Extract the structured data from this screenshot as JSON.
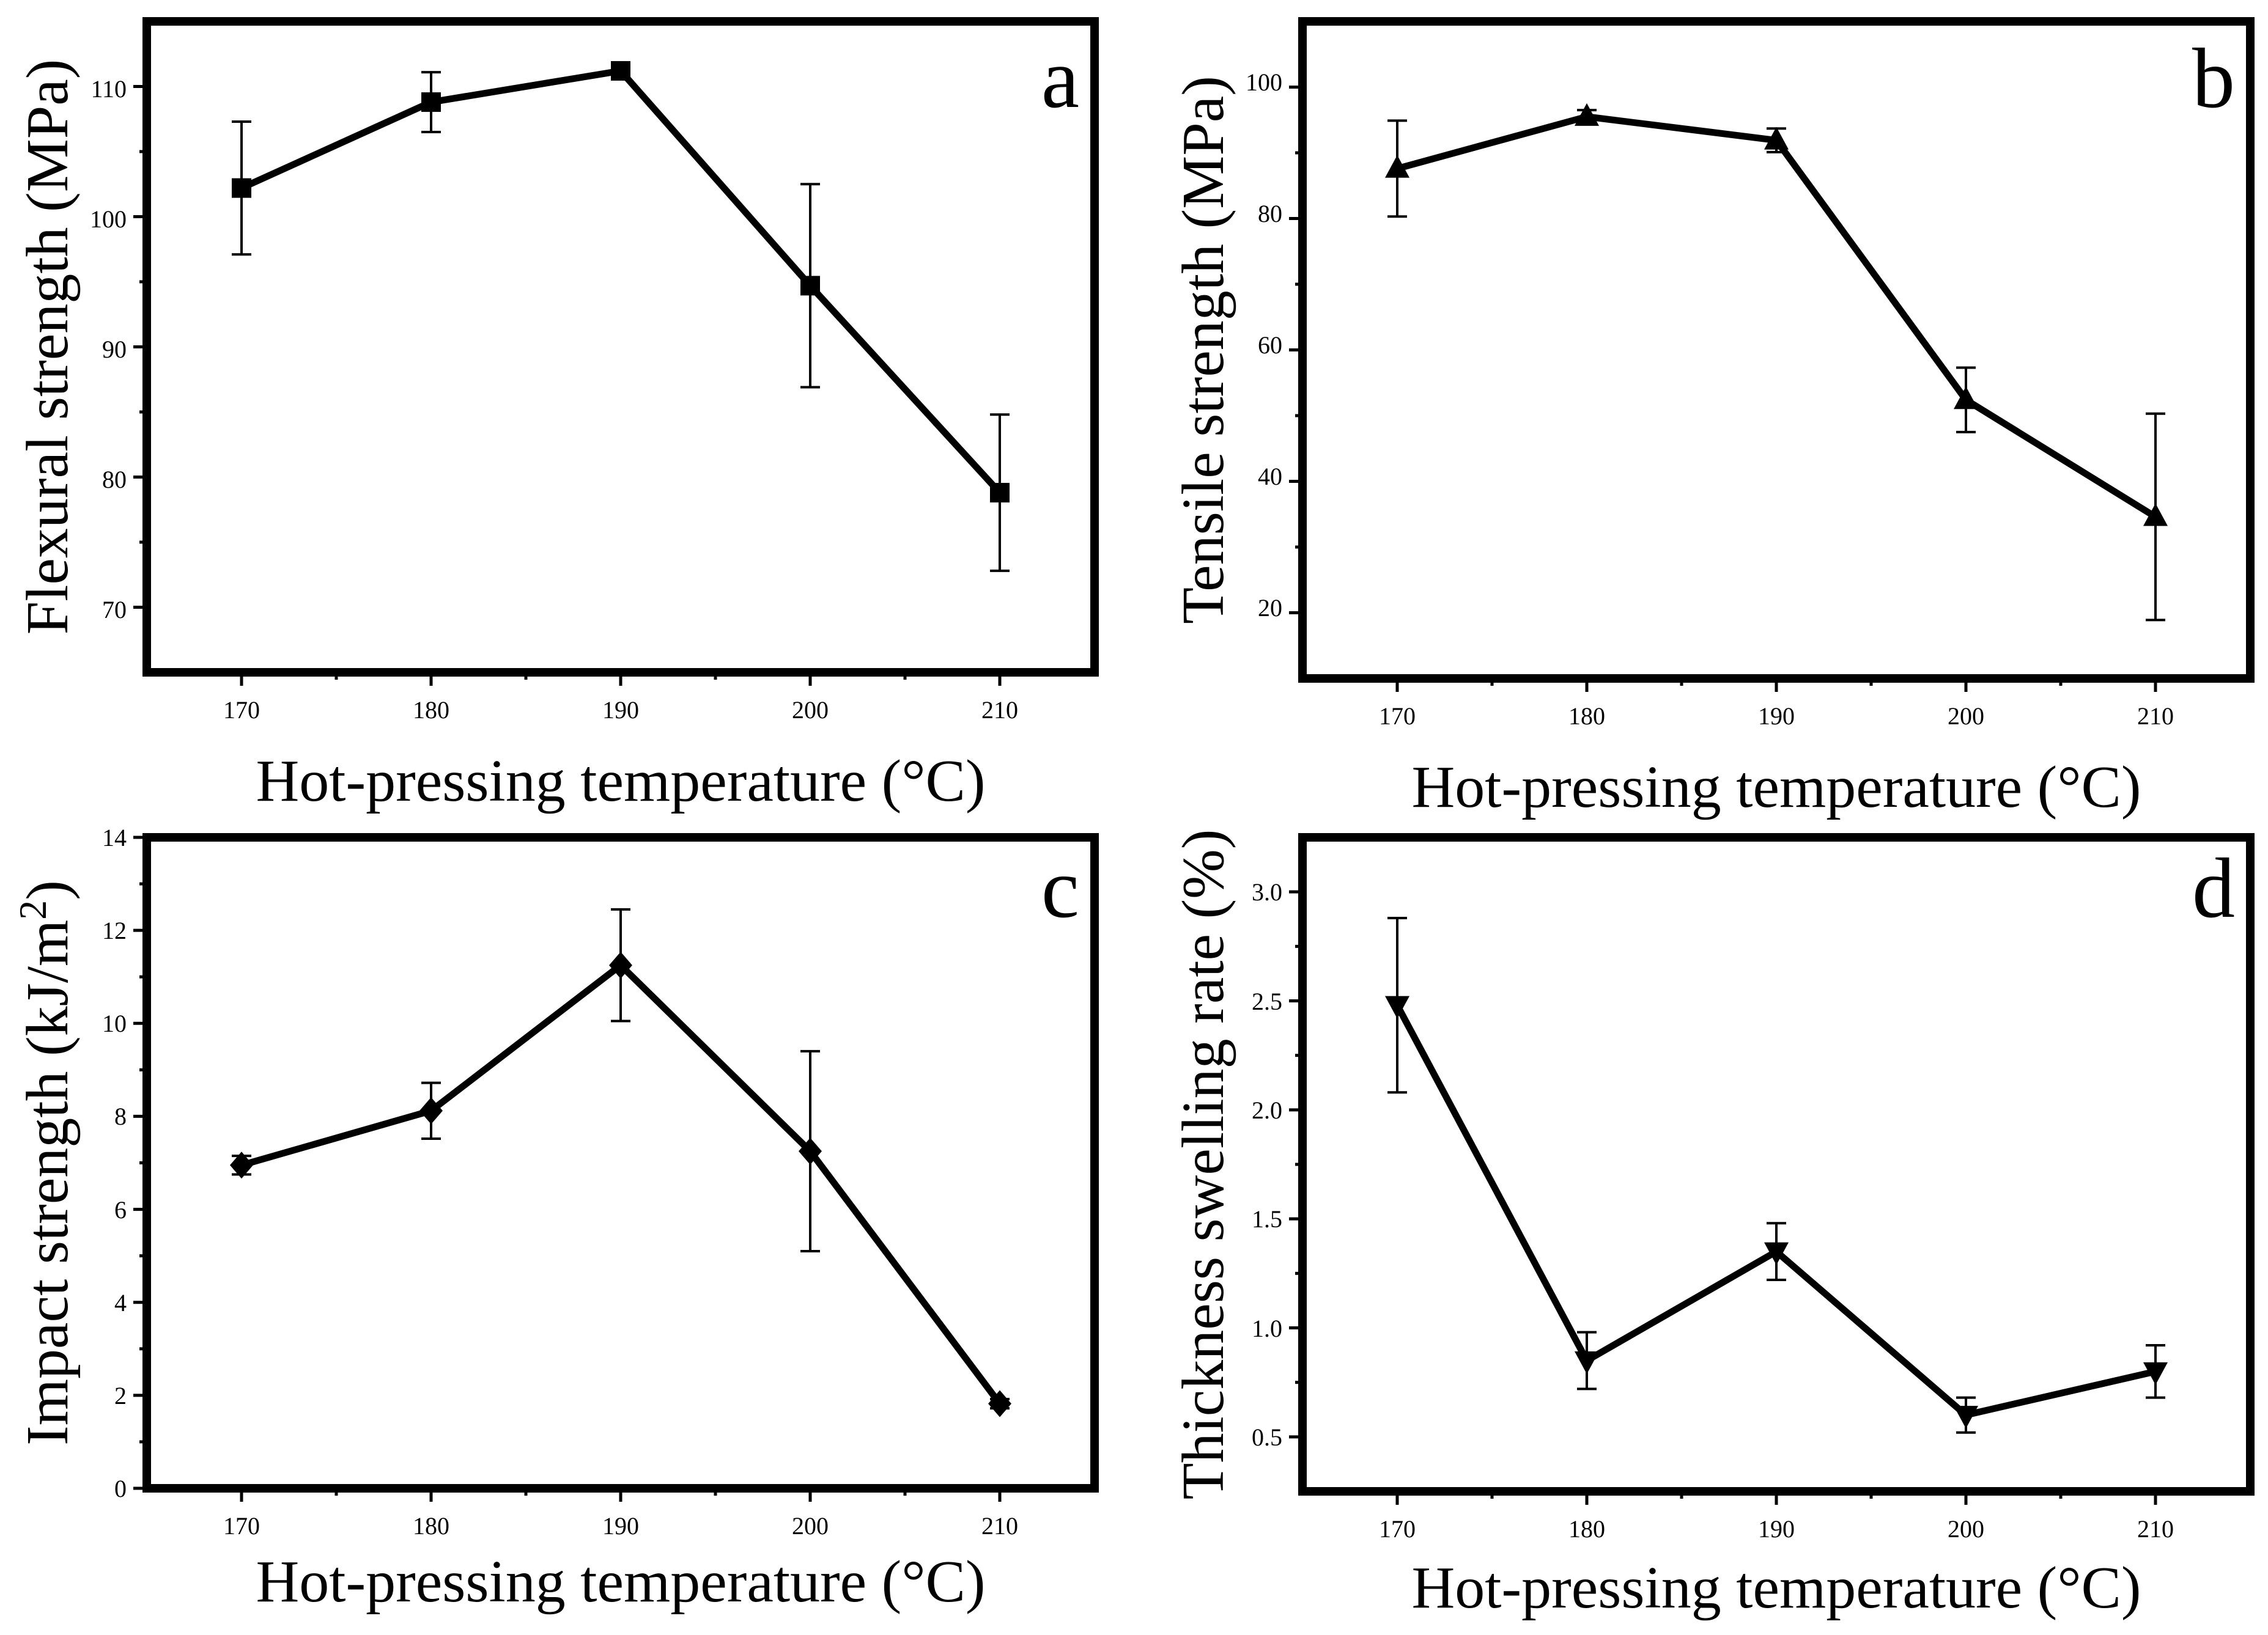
{
  "figure": {
    "panels": 4
  },
  "chart_data": [
    {
      "type": "line",
      "panel_label": "a",
      "xlabel": "Hot-pressing temperature (°C)",
      "ylabel": "Flexural strength (MPa)",
      "ylabel_sup": "",
      "ylabel_end": "",
      "x": [
        170,
        180,
        190,
        200,
        210
      ],
      "values": [
        102.2,
        108.8,
        111.2,
        94.7,
        78.8
      ],
      "errors": [
        5.1,
        2.3,
        0.4,
        7.8,
        6.0
      ],
      "marker": "square",
      "xlim": [
        165,
        215
      ],
      "ylim": [
        65,
        115
      ],
      "xticks": [
        170,
        180,
        190,
        200,
        210
      ],
      "yticks": [
        70,
        80,
        90,
        100,
        110
      ],
      "ytick_labels": [
        "70",
        "80",
        "90",
        "100",
        "110"
      ],
      "color": "#000000"
    },
    {
      "type": "line",
      "panel_label": "b",
      "xlabel": "Hot-pressing temperature (°C)",
      "ylabel": "Tensile strength (MPa)",
      "ylabel_sup": "",
      "ylabel_end": "",
      "x": [
        170,
        180,
        190,
        200,
        210
      ],
      "values": [
        87.6,
        95.5,
        91.9,
        52.4,
        34.6
      ],
      "errors": [
        7.3,
        1.0,
        1.8,
        4.9,
        15.7
      ],
      "marker": "triangle-up",
      "xlim": [
        165,
        215
      ],
      "ylim": [
        10,
        110
      ],
      "xticks": [
        170,
        180,
        190,
        200,
        210
      ],
      "yticks": [
        20,
        40,
        60,
        80,
        100
      ],
      "ytick_labels": [
        "20",
        "40",
        "60",
        "80",
        "100"
      ],
      "color": "#000000"
    },
    {
      "type": "line",
      "panel_label": "c",
      "xlabel": "Hot-pressing temperature (°C)",
      "ylabel": "Impact strength (kJ/m",
      "ylabel_sup": "2",
      "ylabel_end": ")",
      "x": [
        170,
        180,
        190,
        200,
        210
      ],
      "values": [
        6.95,
        8.12,
        11.25,
        7.25,
        1.82
      ],
      "errors": [
        0.2,
        0.6,
        1.2,
        2.15,
        0.1
      ],
      "marker": "diamond",
      "xlim": [
        165,
        215
      ],
      "ylim": [
        0,
        14
      ],
      "xticks": [
        170,
        180,
        190,
        200,
        210
      ],
      "yticks": [
        0,
        2,
        4,
        6,
        8,
        10,
        12,
        14
      ],
      "ytick_labels": [
        "0",
        "2",
        "4",
        "6",
        "8",
        "10",
        "12",
        "14"
      ],
      "color": "#000000"
    },
    {
      "type": "line",
      "panel_label": "d",
      "xlabel": "Hot-pressing temperature (°C)",
      "ylabel": "Thickness swelling rate (%)",
      "ylabel_sup": "",
      "ylabel_end": "",
      "x": [
        170,
        180,
        190,
        200,
        210
      ],
      "values": [
        2.48,
        0.85,
        1.35,
        0.6,
        0.8
      ],
      "errors": [
        0.4,
        0.13,
        0.13,
        0.08,
        0.12
      ],
      "marker": "triangle-down",
      "xlim": [
        165,
        215
      ],
      "ylim": [
        0.25,
        3.25
      ],
      "xticks": [
        170,
        180,
        190,
        200,
        210
      ],
      "yticks": [
        0.5,
        1.0,
        1.5,
        2.0,
        2.5,
        3.0
      ],
      "ytick_labels": [
        "0.5",
        "1.0",
        "1.5",
        "2.0",
        "2.5",
        "3.0"
      ],
      "color": "#000000"
    }
  ]
}
